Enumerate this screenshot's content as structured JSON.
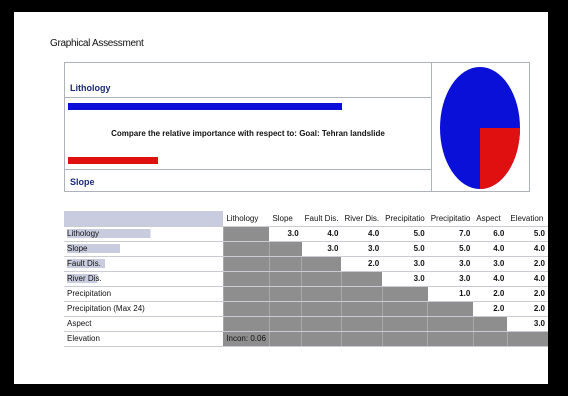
{
  "title": "Graphical Assessment",
  "comparison": {
    "left_label": "Lithology",
    "right_label": "Slope",
    "question": "Compare the relative importance with respect to: Goal: Tehran landslide",
    "left_fraction": 0.75,
    "right_fraction": 0.25,
    "colors": {
      "left": "#0a10d8",
      "right": "#e01010"
    }
  },
  "pie": {
    "blue_fraction": 0.75,
    "red_fraction": 0.25
  },
  "matrix": {
    "columns": [
      "Lithology",
      "Slope",
      "Fault Dis.",
      "River Dis.",
      "Precipitatio",
      "Precipitatio",
      "Aspect",
      "Elevation"
    ],
    "rows": [
      {
        "label": "Lithology",
        "highlight_pct": 55,
        "values": [
          "",
          "",
          "3.0",
          "4.0",
          "4.0",
          "5.0",
          "7.0",
          "6.0",
          "5.0"
        ]
      },
      {
        "label": "Slope",
        "highlight_pct": 35,
        "values": [
          "",
          "",
          "",
          "3.0",
          "3.0",
          "5.0",
          "5.0",
          "4.0",
          "4.0"
        ]
      },
      {
        "label": "Fault Dis.",
        "highlight_pct": 25,
        "values": [
          "",
          "",
          "",
          "",
          "2.0",
          "3.0",
          "3.0",
          "3.0",
          "2.0"
        ]
      },
      {
        "label": "River Dis.",
        "highlight_pct": 20,
        "values": [
          "",
          "",
          "",
          "",
          "",
          "3.0",
          "3.0",
          "4.0",
          "4.0"
        ]
      },
      {
        "label": "Precipitation",
        "highlight_pct": 0,
        "values": [
          "",
          "",
          "",
          "",
          "",
          "",
          "1.0",
          "2.0",
          "2.0"
        ]
      },
      {
        "label": "Precipitation (Max 24)",
        "highlight_pct": 0,
        "values": [
          "",
          "",
          "",
          "",
          "",
          "",
          "",
          "2.0",
          "2.0"
        ]
      },
      {
        "label": "Aspect",
        "highlight_pct": 0,
        "values": [
          "",
          "",
          "",
          "",
          "",
          "",
          "",
          "",
          "3.0"
        ]
      },
      {
        "label": "Elevation",
        "highlight_pct": 0,
        "values": [
          "",
          "",
          "",
          "",
          "",
          "",
          "",
          "",
          ""
        ]
      }
    ],
    "inconsistency": "Incon: 0.06"
  }
}
